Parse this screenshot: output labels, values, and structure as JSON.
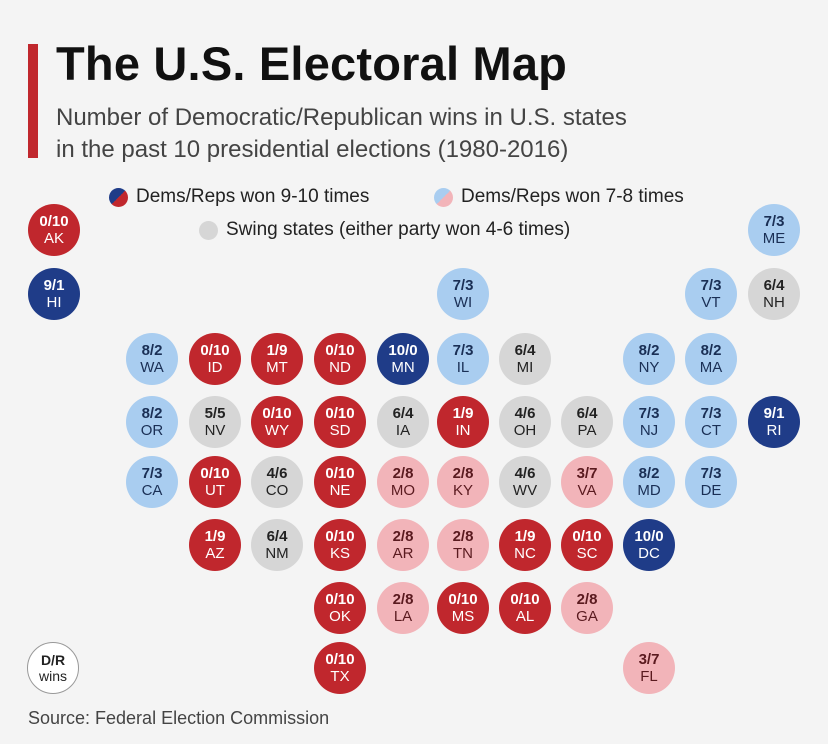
{
  "header": {
    "title": "The U.S. Electoral Map",
    "subtitle_line1": "Number of Democratic/Republican wins in U.S. states",
    "subtitle_line2": "in the past 10 presidential elections (1980-2016)"
  },
  "legend": {
    "strong": "Dems/Reps won 9-10 times",
    "lean": "Dems/Reps won 7-8 times",
    "swing": "Swing states (either party won 4-6 times)"
  },
  "colors": {
    "dem": "#1f3c88",
    "rep": "#c0272d",
    "lean_dem": "#a9cdf0",
    "lean_rep": "#f2b4b9",
    "swing": "#d6d6d6",
    "accent": "#c0272d"
  },
  "states": [
    {
      "abbr": "AK",
      "ratio": "0/10",
      "cat": "rep"
    },
    {
      "abbr": "HI",
      "ratio": "9/1",
      "cat": "dem"
    },
    {
      "abbr": "ME",
      "ratio": "7/3",
      "cat": "ldem"
    },
    {
      "abbr": "WI",
      "ratio": "7/3",
      "cat": "ldem"
    },
    {
      "abbr": "VT",
      "ratio": "7/3",
      "cat": "ldem"
    },
    {
      "abbr": "NH",
      "ratio": "6/4",
      "cat": "swing"
    },
    {
      "abbr": "WA",
      "ratio": "8/2",
      "cat": "ldem"
    },
    {
      "abbr": "ID",
      "ratio": "0/10",
      "cat": "rep"
    },
    {
      "abbr": "MT",
      "ratio": "1/9",
      "cat": "rep"
    },
    {
      "abbr": "ND",
      "ratio": "0/10",
      "cat": "rep"
    },
    {
      "abbr": "MN",
      "ratio": "10/0",
      "cat": "dem"
    },
    {
      "abbr": "IL",
      "ratio": "7/3",
      "cat": "ldem"
    },
    {
      "abbr": "MI",
      "ratio": "6/4",
      "cat": "swing"
    },
    {
      "abbr": "NY",
      "ratio": "8/2",
      "cat": "ldem"
    },
    {
      "abbr": "MA",
      "ratio": "8/2",
      "cat": "ldem"
    },
    {
      "abbr": "OR",
      "ratio": "8/2",
      "cat": "ldem"
    },
    {
      "abbr": "NV",
      "ratio": "5/5",
      "cat": "swing"
    },
    {
      "abbr": "WY",
      "ratio": "0/10",
      "cat": "rep"
    },
    {
      "abbr": "SD",
      "ratio": "0/10",
      "cat": "rep"
    },
    {
      "abbr": "IA",
      "ratio": "6/4",
      "cat": "swing"
    },
    {
      "abbr": "IN",
      "ratio": "1/9",
      "cat": "rep"
    },
    {
      "abbr": "OH",
      "ratio": "4/6",
      "cat": "swing"
    },
    {
      "abbr": "PA",
      "ratio": "6/4",
      "cat": "swing"
    },
    {
      "abbr": "NJ",
      "ratio": "7/3",
      "cat": "ldem"
    },
    {
      "abbr": "CT",
      "ratio": "7/3",
      "cat": "ldem"
    },
    {
      "abbr": "RI",
      "ratio": "9/1",
      "cat": "dem"
    },
    {
      "abbr": "CA",
      "ratio": "7/3",
      "cat": "ldem"
    },
    {
      "abbr": "UT",
      "ratio": "0/10",
      "cat": "rep"
    },
    {
      "abbr": "CO",
      "ratio": "4/6",
      "cat": "swing"
    },
    {
      "abbr": "NE",
      "ratio": "0/10",
      "cat": "rep"
    },
    {
      "abbr": "MO",
      "ratio": "2/8",
      "cat": "lrep"
    },
    {
      "abbr": "KY",
      "ratio": "2/8",
      "cat": "lrep"
    },
    {
      "abbr": "WV",
      "ratio": "4/6",
      "cat": "swing"
    },
    {
      "abbr": "VA",
      "ratio": "3/7",
      "cat": "lrep"
    },
    {
      "abbr": "MD",
      "ratio": "8/2",
      "cat": "ldem"
    },
    {
      "abbr": "DE",
      "ratio": "7/3",
      "cat": "ldem"
    },
    {
      "abbr": "AZ",
      "ratio": "1/9",
      "cat": "rep"
    },
    {
      "abbr": "NM",
      "ratio": "6/4",
      "cat": "swing"
    },
    {
      "abbr": "KS",
      "ratio": "0/10",
      "cat": "rep"
    },
    {
      "abbr": "AR",
      "ratio": "2/8",
      "cat": "lrep"
    },
    {
      "abbr": "TN",
      "ratio": "2/8",
      "cat": "lrep"
    },
    {
      "abbr": "NC",
      "ratio": "1/9",
      "cat": "rep"
    },
    {
      "abbr": "SC",
      "ratio": "0/10",
      "cat": "rep"
    },
    {
      "abbr": "DC",
      "ratio": "10/0",
      "cat": "dem"
    },
    {
      "abbr": "OK",
      "ratio": "0/10",
      "cat": "rep"
    },
    {
      "abbr": "LA",
      "ratio": "2/8",
      "cat": "lrep"
    },
    {
      "abbr": "MS",
      "ratio": "0/10",
      "cat": "rep"
    },
    {
      "abbr": "AL",
      "ratio": "0/10",
      "cat": "rep"
    },
    {
      "abbr": "GA",
      "ratio": "2/8",
      "cat": "lrep"
    },
    {
      "abbr": "TX",
      "ratio": "0/10",
      "cat": "rep"
    },
    {
      "abbr": "FL",
      "ratio": "3/7",
      "cat": "lrep"
    }
  ],
  "key": {
    "line1": "D/R",
    "line2": "wins"
  },
  "footer": {
    "source": "Source: Federal Election Commission"
  }
}
